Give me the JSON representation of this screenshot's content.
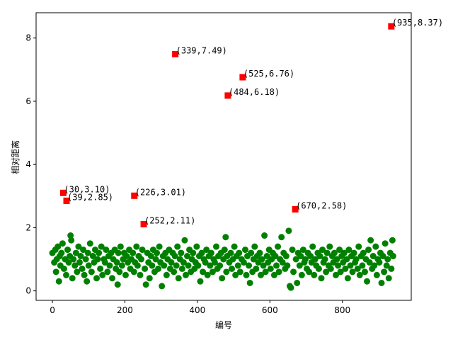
{
  "chart_data": {
    "type": "scatter",
    "xlabel": "编号",
    "ylabel": "相对距离",
    "xlim": [
      -45,
      990
    ],
    "ylim": [
      -0.3,
      8.8
    ],
    "xticks": [
      0,
      200,
      400,
      600,
      800
    ],
    "yticks": [
      0,
      2,
      4,
      6,
      8
    ],
    "grid": false,
    "colors": {
      "normal": "#008000",
      "outlier": "#ff0000"
    },
    "series": [
      {
        "role": "normal",
        "marker": "circle",
        "points": [
          [
            0,
            1.2
          ],
          [
            5,
            0.9
          ],
          [
            8,
            1.3
          ],
          [
            10,
            0.6
          ],
          [
            12,
            1.0
          ],
          [
            15,
            1.4
          ],
          [
            18,
            0.3
          ],
          [
            20,
            1.1
          ],
          [
            22,
            0.8
          ],
          [
            25,
            1.2
          ],
          [
            28,
            1.5
          ],
          [
            32,
            0.7
          ],
          [
            35,
            1.0
          ],
          [
            38,
            0.5
          ],
          [
            42,
            1.3
          ],
          [
            45,
            0.9
          ],
          [
            48,
            1.1
          ],
          [
            50,
            1.75
          ],
          [
            52,
            1.6
          ],
          [
            55,
            0.4
          ],
          [
            58,
            1.0
          ],
          [
            62,
            0.8
          ],
          [
            65,
            1.2
          ],
          [
            68,
            0.6
          ],
          [
            72,
            1.4
          ],
          [
            75,
            0.9
          ],
          [
            78,
            1.1
          ],
          [
            82,
            0.7
          ],
          [
            85,
            1.3
          ],
          [
            88,
            0.5
          ],
          [
            92,
            1.0
          ],
          [
            95,
            0.3
          ],
          [
            98,
            1.2
          ],
          [
            100,
            0.8
          ],
          [
            104,
            1.5
          ],
          [
            108,
            0.6
          ],
          [
            112,
            1.1
          ],
          [
            115,
            0.9
          ],
          [
            118,
            1.3
          ],
          [
            122,
            0.4
          ],
          [
            125,
            1.0
          ],
          [
            128,
            1.2
          ],
          [
            132,
            0.7
          ],
          [
            135,
            1.4
          ],
          [
            138,
            0.5
          ],
          [
            142,
            1.0
          ],
          [
            145,
            0.9
          ],
          [
            148,
            1.3
          ],
          [
            152,
            0.6
          ],
          [
            155,
            1.1
          ],
          [
            158,
            0.8
          ],
          [
            162,
            1.2
          ],
          [
            165,
            0.4
          ],
          [
            168,
            1.0
          ],
          [
            172,
            1.3
          ],
          [
            175,
            0.7
          ],
          [
            178,
            0.9
          ],
          [
            180,
            0.2
          ],
          [
            182,
            1.2
          ],
          [
            185,
            0.6
          ],
          [
            188,
            1.4
          ],
          [
            192,
            0.8
          ],
          [
            195,
            1.0
          ],
          [
            198,
            1.2
          ],
          [
            202,
            0.5
          ],
          [
            205,
            1.1
          ],
          [
            208,
            0.9
          ],
          [
            212,
            1.3
          ],
          [
            215,
            0.7
          ],
          [
            218,
            1.0
          ],
          [
            222,
            1.2
          ],
          [
            225,
            0.6
          ],
          [
            228,
            0.9
          ],
          [
            232,
            1.4
          ],
          [
            235,
            0.8
          ],
          [
            238,
            1.1
          ],
          [
            242,
            0.5
          ],
          [
            245,
            1.0
          ],
          [
            248,
            1.3
          ],
          [
            255,
            0.7
          ],
          [
            258,
            0.2
          ],
          [
            262,
            1.2
          ],
          [
            265,
            0.9
          ],
          [
            268,
            0.4
          ],
          [
            272,
            1.1
          ],
          [
            275,
            0.8
          ],
          [
            278,
            1.3
          ],
          [
            282,
            0.6
          ],
          [
            285,
            1.0
          ],
          [
            288,
            1.2
          ],
          [
            292,
            0.7
          ],
          [
            295,
            1.4
          ],
          [
            298,
            0.9
          ],
          [
            302,
            0.15
          ],
          [
            305,
            1.1
          ],
          [
            308,
            0.8
          ],
          [
            312,
            1.2
          ],
          [
            315,
            0.5
          ],
          [
            318,
            1.0
          ],
          [
            322,
            1.3
          ],
          [
            325,
            0.7
          ],
          [
            328,
            0.9
          ],
          [
            332,
            1.2
          ],
          [
            335,
            0.6
          ],
          [
            338,
            1.1
          ],
          [
            342,
            0.8
          ],
          [
            345,
            1.4
          ],
          [
            348,
            0.4
          ],
          [
            352,
            1.0
          ],
          [
            355,
            1.2
          ],
          [
            358,
            0.7
          ],
          [
            362,
            0.9
          ],
          [
            365,
            1.6
          ],
          [
            368,
            0.5
          ],
          [
            372,
            1.1
          ],
          [
            375,
            0.8
          ],
          [
            378,
            1.3
          ],
          [
            382,
            0.6
          ],
          [
            385,
            1.0
          ],
          [
            388,
            1.2
          ],
          [
            392,
            0.7
          ],
          [
            395,
            0.9
          ],
          [
            398,
            1.4
          ],
          [
            402,
            0.8
          ],
          [
            405,
            1.1
          ],
          [
            408,
            0.3
          ],
          [
            412,
            1.2
          ],
          [
            415,
            0.6
          ],
          [
            418,
            1.0
          ],
          [
            422,
            0.9
          ],
          [
            425,
            1.3
          ],
          [
            428,
            0.5
          ],
          [
            432,
            1.1
          ],
          [
            435,
            0.8
          ],
          [
            438,
            1.2
          ],
          [
            442,
            0.6
          ],
          [
            445,
            1.0
          ],
          [
            448,
            0.9
          ],
          [
            452,
            1.4
          ],
          [
            455,
            0.7
          ],
          [
            458,
            1.1
          ],
          [
            462,
            0.8
          ],
          [
            465,
            1.2
          ],
          [
            468,
            0.4
          ],
          [
            472,
            1.0
          ],
          [
            475,
            1.3
          ],
          [
            478,
            1.7
          ],
          [
            480,
            0.6
          ],
          [
            482,
            1.1
          ],
          [
            488,
            0.9
          ],
          [
            492,
            1.2
          ],
          [
            495,
            0.7
          ],
          [
            498,
            1.0
          ],
          [
            502,
            1.4
          ],
          [
            505,
            0.5
          ],
          [
            508,
            1.1
          ],
          [
            512,
            0.8
          ],
          [
            515,
            1.2
          ],
          [
            518,
            0.6
          ],
          [
            522,
            1.0
          ],
          [
            528,
            0.9
          ],
          [
            532,
            1.3
          ],
          [
            535,
            0.5
          ],
          [
            538,
            1.1
          ],
          [
            542,
            0.8
          ],
          [
            545,
            0.25
          ],
          [
            548,
            1.2
          ],
          [
            552,
            0.6
          ],
          [
            555,
            1.0
          ],
          [
            558,
            1.4
          ],
          [
            562,
            0.7
          ],
          [
            565,
            1.1
          ],
          [
            568,
            0.9
          ],
          [
            572,
            1.2
          ],
          [
            575,
            0.5
          ],
          [
            578,
            1.0
          ],
          [
            582,
            0.8
          ],
          [
            585,
            1.75
          ],
          [
            588,
            0.6
          ],
          [
            592,
            1.1
          ],
          [
            595,
            0.9
          ],
          [
            598,
            1.3
          ],
          [
            602,
            0.7
          ],
          [
            605,
            1.0
          ],
          [
            608,
            1.2
          ],
          [
            612,
            0.5
          ],
          [
            615,
            1.1
          ],
          [
            618,
            0.8
          ],
          [
            622,
            1.4
          ],
          [
            625,
            0.6
          ],
          [
            628,
            1.0
          ],
          [
            632,
            1.7
          ],
          [
            635,
            0.9
          ],
          [
            638,
            1.2
          ],
          [
            642,
            0.7
          ],
          [
            645,
            1.1
          ],
          [
            648,
            0.8
          ],
          [
            652,
            1.9
          ],
          [
            655,
            0.15
          ],
          [
            658,
            0.1
          ],
          [
            662,
            1.3
          ],
          [
            665,
            0.6
          ],
          [
            672,
            1.0
          ],
          [
            675,
            0.25
          ],
          [
            678,
            1.2
          ],
          [
            682,
            0.8
          ],
          [
            685,
            1.1
          ],
          [
            688,
            0.5
          ],
          [
            692,
            1.3
          ],
          [
            695,
            0.9
          ],
          [
            698,
            1.0
          ],
          [
            702,
            0.7
          ],
          [
            705,
            1.2
          ],
          [
            708,
            0.6
          ],
          [
            712,
            1.1
          ],
          [
            715,
            0.9
          ],
          [
            718,
            1.4
          ],
          [
            722,
            0.5
          ],
          [
            725,
            1.0
          ],
          [
            728,
            0.8
          ],
          [
            732,
            1.2
          ],
          [
            735,
            0.7
          ],
          [
            738,
            1.1
          ],
          [
            742,
            0.4
          ],
          [
            745,
            1.3
          ],
          [
            748,
            0.9
          ],
          [
            752,
            1.0
          ],
          [
            755,
            0.6
          ],
          [
            758,
            1.2
          ],
          [
            762,
            0.8
          ],
          [
            765,
            1.4
          ],
          [
            768,
            0.7
          ],
          [
            772,
            1.1
          ],
          [
            775,
            0.9
          ],
          [
            778,
            1.2
          ],
          [
            782,
            0.5
          ],
          [
            785,
            1.0
          ],
          [
            788,
            0.8
          ],
          [
            792,
            1.3
          ],
          [
            795,
            0.6
          ],
          [
            798,
            1.1
          ],
          [
            802,
            0.9
          ],
          [
            805,
            1.2
          ],
          [
            808,
            0.7
          ],
          [
            812,
            1.0
          ],
          [
            815,
            0.4
          ],
          [
            818,
            1.3
          ],
          [
            822,
            0.8
          ],
          [
            825,
            1.1
          ],
          [
            828,
            0.6
          ],
          [
            832,
            1.2
          ],
          [
            835,
            0.9
          ],
          [
            838,
            1.0
          ],
          [
            842,
            0.7
          ],
          [
            845,
            1.4
          ],
          [
            848,
            0.5
          ],
          [
            852,
            1.1
          ],
          [
            855,
            0.8
          ],
          [
            858,
            1.2
          ],
          [
            862,
            0.6
          ],
          [
            865,
            1.0
          ],
          [
            868,
            0.3
          ],
          [
            872,
            1.3
          ],
          [
            875,
            0.9
          ],
          [
            878,
            1.6
          ],
          [
            882,
            0.7
          ],
          [
            885,
            1.1
          ],
          [
            888,
            0.8
          ],
          [
            892,
            1.4
          ],
          [
            895,
            0.5
          ],
          [
            898,
            1.0
          ],
          [
            902,
            0.9
          ],
          [
            905,
            1.2
          ],
          [
            908,
            0.25
          ],
          [
            912,
            1.1
          ],
          [
            915,
            0.6
          ],
          [
            918,
            1.5
          ],
          [
            922,
            0.8
          ],
          [
            925,
            1.0
          ],
          [
            928,
            0.4
          ],
          [
            932,
            1.2
          ],
          [
            935,
            0.7
          ],
          [
            938,
            1.6
          ],
          [
            940,
            1.1
          ]
        ]
      },
      {
        "role": "outlier",
        "marker": "square",
        "points": [
          {
            "x": 30,
            "y": 3.1,
            "label": "(30,3.10)"
          },
          {
            "x": 39,
            "y": 2.85,
            "label": "(39,2.85)"
          },
          {
            "x": 226,
            "y": 3.01,
            "label": "(226,3.01)"
          },
          {
            "x": 252,
            "y": 2.11,
            "label": "(252,2.11)"
          },
          {
            "x": 339,
            "y": 7.49,
            "label": "(339,7.49)"
          },
          {
            "x": 484,
            "y": 6.18,
            "label": "(484,6.18)"
          },
          {
            "x": 525,
            "y": 6.76,
            "label": "(525,6.76)"
          },
          {
            "x": 670,
            "y": 2.58,
            "label": "(670,2.58)"
          },
          {
            "x": 935,
            "y": 8.37,
            "label": "(935,8.37)"
          }
        ]
      }
    ]
  }
}
